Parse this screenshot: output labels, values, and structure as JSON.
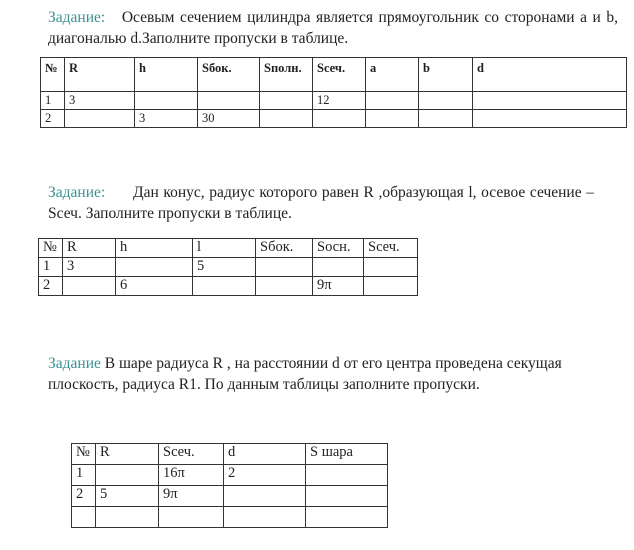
{
  "task1": {
    "label": "Задание:",
    "text": "Осевым сечением цилиндра является прямоугольник со сторонами a и b, диагональю d.Заполните пропуски в таблице.",
    "headers": [
      "№",
      "R",
      "h",
      "Sбок.",
      "Sполн.",
      "Sсеч.",
      "a",
      "b",
      "d"
    ],
    "rows": [
      [
        "1",
        "3",
        "",
        "",
        "",
        "12",
        "",
        "",
        ""
      ],
      [
        "2",
        "",
        "3",
        "30",
        "",
        "",
        "",
        "",
        ""
      ]
    ]
  },
  "task2": {
    "label": "Задание:",
    "text": "Дан конус, радиус которого равен R ,образующая l, осевое сечение – Sсеч. Заполните пропуски в таблице.",
    "headers": [
      "№",
      "R",
      "h",
      "l",
      "Sбок.",
      "Sосн.",
      "Sсеч."
    ],
    "rows": [
      [
        "1",
        "3",
        "",
        "5",
        "",
        "",
        ""
      ],
      [
        "2",
        "",
        "6",
        "",
        "",
        "9π",
        ""
      ]
    ]
  },
  "task3": {
    "label": "Задание",
    "text": "В шаре радиуса R , на расстоянии d от его центра проведена секущая плоскость, радиуса R1. По данным таблицы заполните пропуски.",
    "headers": [
      "№",
      "R",
      "Sсеч.",
      "d",
      "S шара"
    ],
    "rows": [
      [
        "1",
        "",
        "16π",
        "2",
        ""
      ],
      [
        "2",
        "5",
        "9π",
        "",
        ""
      ],
      [
        "",
        "",
        "",
        "",
        ""
      ]
    ]
  }
}
